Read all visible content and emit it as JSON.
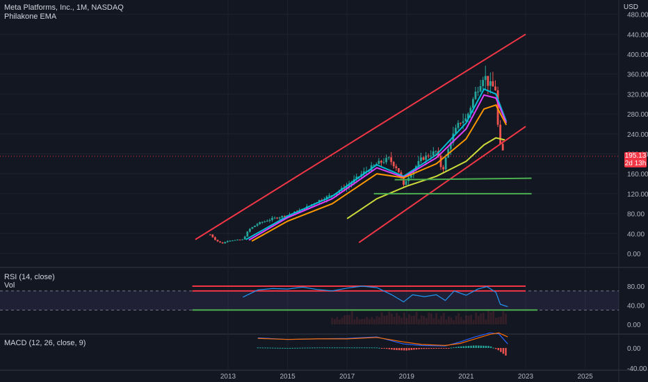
{
  "header": {
    "symbol_title": "Meta Platforms, Inc., 1M, NASDAQ",
    "indicator_title": "Philakone EMA",
    "currency": "USD"
  },
  "price_tag": {
    "price": "195.13",
    "countdown": "2d 13h"
  },
  "panes": {
    "rsi_title": "RSI (14, close)",
    "vol_title": "Vol",
    "macd_title": "MACD (12, 26, close, 9)"
  },
  "colors": {
    "background": "#131722",
    "bull": "#26a69a",
    "bear": "#ef5350",
    "trend_red": "#f23645",
    "support_green": "#4caf50",
    "rsi_line": "#2196f3",
    "ema_fast": "#00bcd4",
    "ema_mid": "#e040fb",
    "ema_slow": "#ff9800",
    "ema_long": "#cddc39"
  },
  "chart_data": [
    {
      "type": "candlestick",
      "title": "Meta Platforms, Inc., 1M, NASDAQ",
      "x_axis_ticks": [
        "2013",
        "2015",
        "2017",
        "2019",
        "2021",
        "2023",
        "2025"
      ],
      "y_axis_ticks": [
        "0.00",
        "40.00",
        "80.00",
        "120.00",
        "160.00",
        "200.00",
        "240.00",
        "280.00",
        "320.00",
        "360.00",
        "400.00",
        "440.00",
        "480.00"
      ],
      "ylim": [
        -20,
        500
      ],
      "xlim": [
        2011.0,
        2026.5
      ],
      "close_anchors": [
        [
          2012.4,
          38
        ],
        [
          2012.6,
          26
        ],
        [
          2012.8,
          20
        ],
        [
          2013.0,
          26
        ],
        [
          2013.3,
          27
        ],
        [
          2013.5,
          28
        ],
        [
          2013.7,
          48
        ],
        [
          2014.0,
          60
        ],
        [
          2014.5,
          70
        ],
        [
          2015.0,
          77
        ],
        [
          2015.5,
          88
        ],
        [
          2016.0,
          105
        ],
        [
          2016.5,
          118
        ],
        [
          2017.0,
          135
        ],
        [
          2017.5,
          160
        ],
        [
          2018.0,
          180
        ],
        [
          2018.4,
          190
        ],
        [
          2018.7,
          170
        ],
        [
          2018.9,
          135
        ],
        [
          2019.0,
          150
        ],
        [
          2019.5,
          190
        ],
        [
          2020.0,
          205
        ],
        [
          2020.2,
          165
        ],
        [
          2020.5,
          230
        ],
        [
          2020.8,
          265
        ],
        [
          2021.0,
          270
        ],
        [
          2021.3,
          320
        ],
        [
          2021.6,
          360
        ],
        [
          2021.75,
          340
        ],
        [
          2022.0,
          330
        ],
        [
          2022.1,
          220
        ],
        [
          2022.2,
          210
        ],
        [
          2022.3,
          195
        ]
      ],
      "emas": [
        {
          "name": "EMA fast",
          "points": [
            [
              2013.6,
              28
            ],
            [
              2015.0,
              75
            ],
            [
              2016.5,
              115
            ],
            [
              2018.0,
              178
            ],
            [
              2018.9,
              155
            ],
            [
              2020.0,
              198
            ],
            [
              2021.0,
              262
            ],
            [
              2021.6,
              330
            ],
            [
              2022.0,
              320
            ],
            [
              2022.35,
              265
            ]
          ]
        },
        {
          "name": "EMA mid",
          "points": [
            [
              2013.7,
              27
            ],
            [
              2015.0,
              72
            ],
            [
              2016.5,
              110
            ],
            [
              2018.0,
              172
            ],
            [
              2018.9,
              153
            ],
            [
              2020.0,
              192
            ],
            [
              2021.0,
              250
            ],
            [
              2021.6,
              318
            ],
            [
              2022.0,
              312
            ],
            [
              2022.35,
              262
            ]
          ]
        },
        {
          "name": "EMA slow",
          "points": [
            [
              2013.8,
              25
            ],
            [
              2015.0,
              65
            ],
            [
              2016.5,
              100
            ],
            [
              2018.0,
              160
            ],
            [
              2018.9,
              152
            ],
            [
              2020.0,
              180
            ],
            [
              2021.0,
              230
            ],
            [
              2021.6,
              290
            ],
            [
              2022.0,
              298
            ],
            [
              2022.35,
              258
            ]
          ]
        },
        {
          "name": "EMA long",
          "points": [
            [
              2017.0,
              70
            ],
            [
              2018.0,
              110
            ],
            [
              2019.0,
              135
            ],
            [
              2020.0,
              155
            ],
            [
              2021.0,
              185
            ],
            [
              2021.6,
              218
            ],
            [
              2022.0,
              232
            ],
            [
              2022.3,
              228
            ]
          ]
        }
      ],
      "drawings": [
        {
          "kind": "upper-trendline",
          "from": [
            2011.9,
            28
          ],
          "to": [
            2023.0,
            440
          ]
        },
        {
          "kind": "lower-trendline",
          "from": [
            2017.4,
            22
          ],
          "to": [
            2023.0,
            255
          ]
        },
        {
          "kind": "support",
          "from": [
            2018.6,
            148
          ],
          "to": [
            2023.2,
            151
          ]
        },
        {
          "kind": "support",
          "from": [
            2017.9,
            120
          ],
          "to": [
            2023.2,
            120
          ]
        }
      ],
      "last_price": 195.13
    },
    {
      "type": "line",
      "title": "RSI (14, close)",
      "y_axis_ticks": [
        "0.00",
        "40.00",
        "80.00"
      ],
      "ylim": [
        -10,
        100
      ],
      "band": [
        30,
        70
      ],
      "series": [
        {
          "name": "RSI",
          "points": [
            [
              2013.5,
              57
            ],
            [
              2014.0,
              72
            ],
            [
              2014.5,
              75
            ],
            [
              2015.0,
              74
            ],
            [
              2015.5,
              78
            ],
            [
              2016.0,
              73
            ],
            [
              2016.5,
              70
            ],
            [
              2017.0,
              76
            ],
            [
              2017.5,
              80
            ],
            [
              2018.0,
              77
            ],
            [
              2018.5,
              62
            ],
            [
              2018.9,
              47
            ],
            [
              2019.2,
              62
            ],
            [
              2019.6,
              58
            ],
            [
              2020.0,
              62
            ],
            [
              2020.3,
              50
            ],
            [
              2020.6,
              70
            ],
            [
              2021.0,
              61
            ],
            [
              2021.4,
              74
            ],
            [
              2021.7,
              79
            ],
            [
              2022.0,
              67
            ],
            [
              2022.15,
              42
            ],
            [
              2022.4,
              37
            ]
          ]
        }
      ],
      "drawings": [
        {
          "kind": "overbought",
          "from": [
            2011.8,
            80
          ],
          "to": [
            2023.0,
            80
          ]
        },
        {
          "kind": "threshold",
          "from": [
            2011.8,
            70
          ],
          "to": [
            2023.0,
            70
          ]
        },
        {
          "kind": "oversold",
          "from": [
            2011.8,
            30
          ],
          "to": [
            2023.4,
            30
          ]
        }
      ]
    },
    {
      "type": "bar",
      "title": "MACD (12, 26, close, 9)",
      "y_axis_ticks": [
        "0.00",
        "-40.00"
      ],
      "ylim": [
        -50,
        35
      ],
      "macd_line": [
        [
          2014.0,
          20
        ],
        [
          2015.0,
          17
        ],
        [
          2016.0,
          18
        ],
        [
          2017.0,
          19
        ],
        [
          2018.0,
          22
        ],
        [
          2018.9,
          8
        ],
        [
          2019.5,
          5
        ],
        [
          2020.3,
          4
        ],
        [
          2020.8,
          12
        ],
        [
          2021.3,
          22
        ],
        [
          2021.8,
          30
        ],
        [
          2022.1,
          28
        ],
        [
          2022.4,
          8
        ]
      ],
      "signal_line": [
        [
          2014.0,
          19
        ],
        [
          2015.0,
          17
        ],
        [
          2016.0,
          18
        ],
        [
          2017.0,
          18
        ],
        [
          2018.0,
          21
        ],
        [
          2018.9,
          12
        ],
        [
          2019.5,
          7
        ],
        [
          2020.3,
          5
        ],
        [
          2020.8,
          9
        ],
        [
          2021.3,
          18
        ],
        [
          2021.8,
          27
        ],
        [
          2022.1,
          30
        ],
        [
          2022.4,
          22
        ]
      ],
      "histogram_anchors": [
        [
          2014.0,
          1
        ],
        [
          2015.0,
          0
        ],
        [
          2016.0,
          1
        ],
        [
          2017.0,
          1
        ],
        [
          2018.0,
          1
        ],
        [
          2018.6,
          -4
        ],
        [
          2019.0,
          -5
        ],
        [
          2019.5,
          -2
        ],
        [
          2020.3,
          -1
        ],
        [
          2020.8,
          3
        ],
        [
          2021.3,
          5
        ],
        [
          2021.8,
          4
        ],
        [
          2022.1,
          -5
        ],
        [
          2022.4,
          -18
        ]
      ]
    }
  ]
}
